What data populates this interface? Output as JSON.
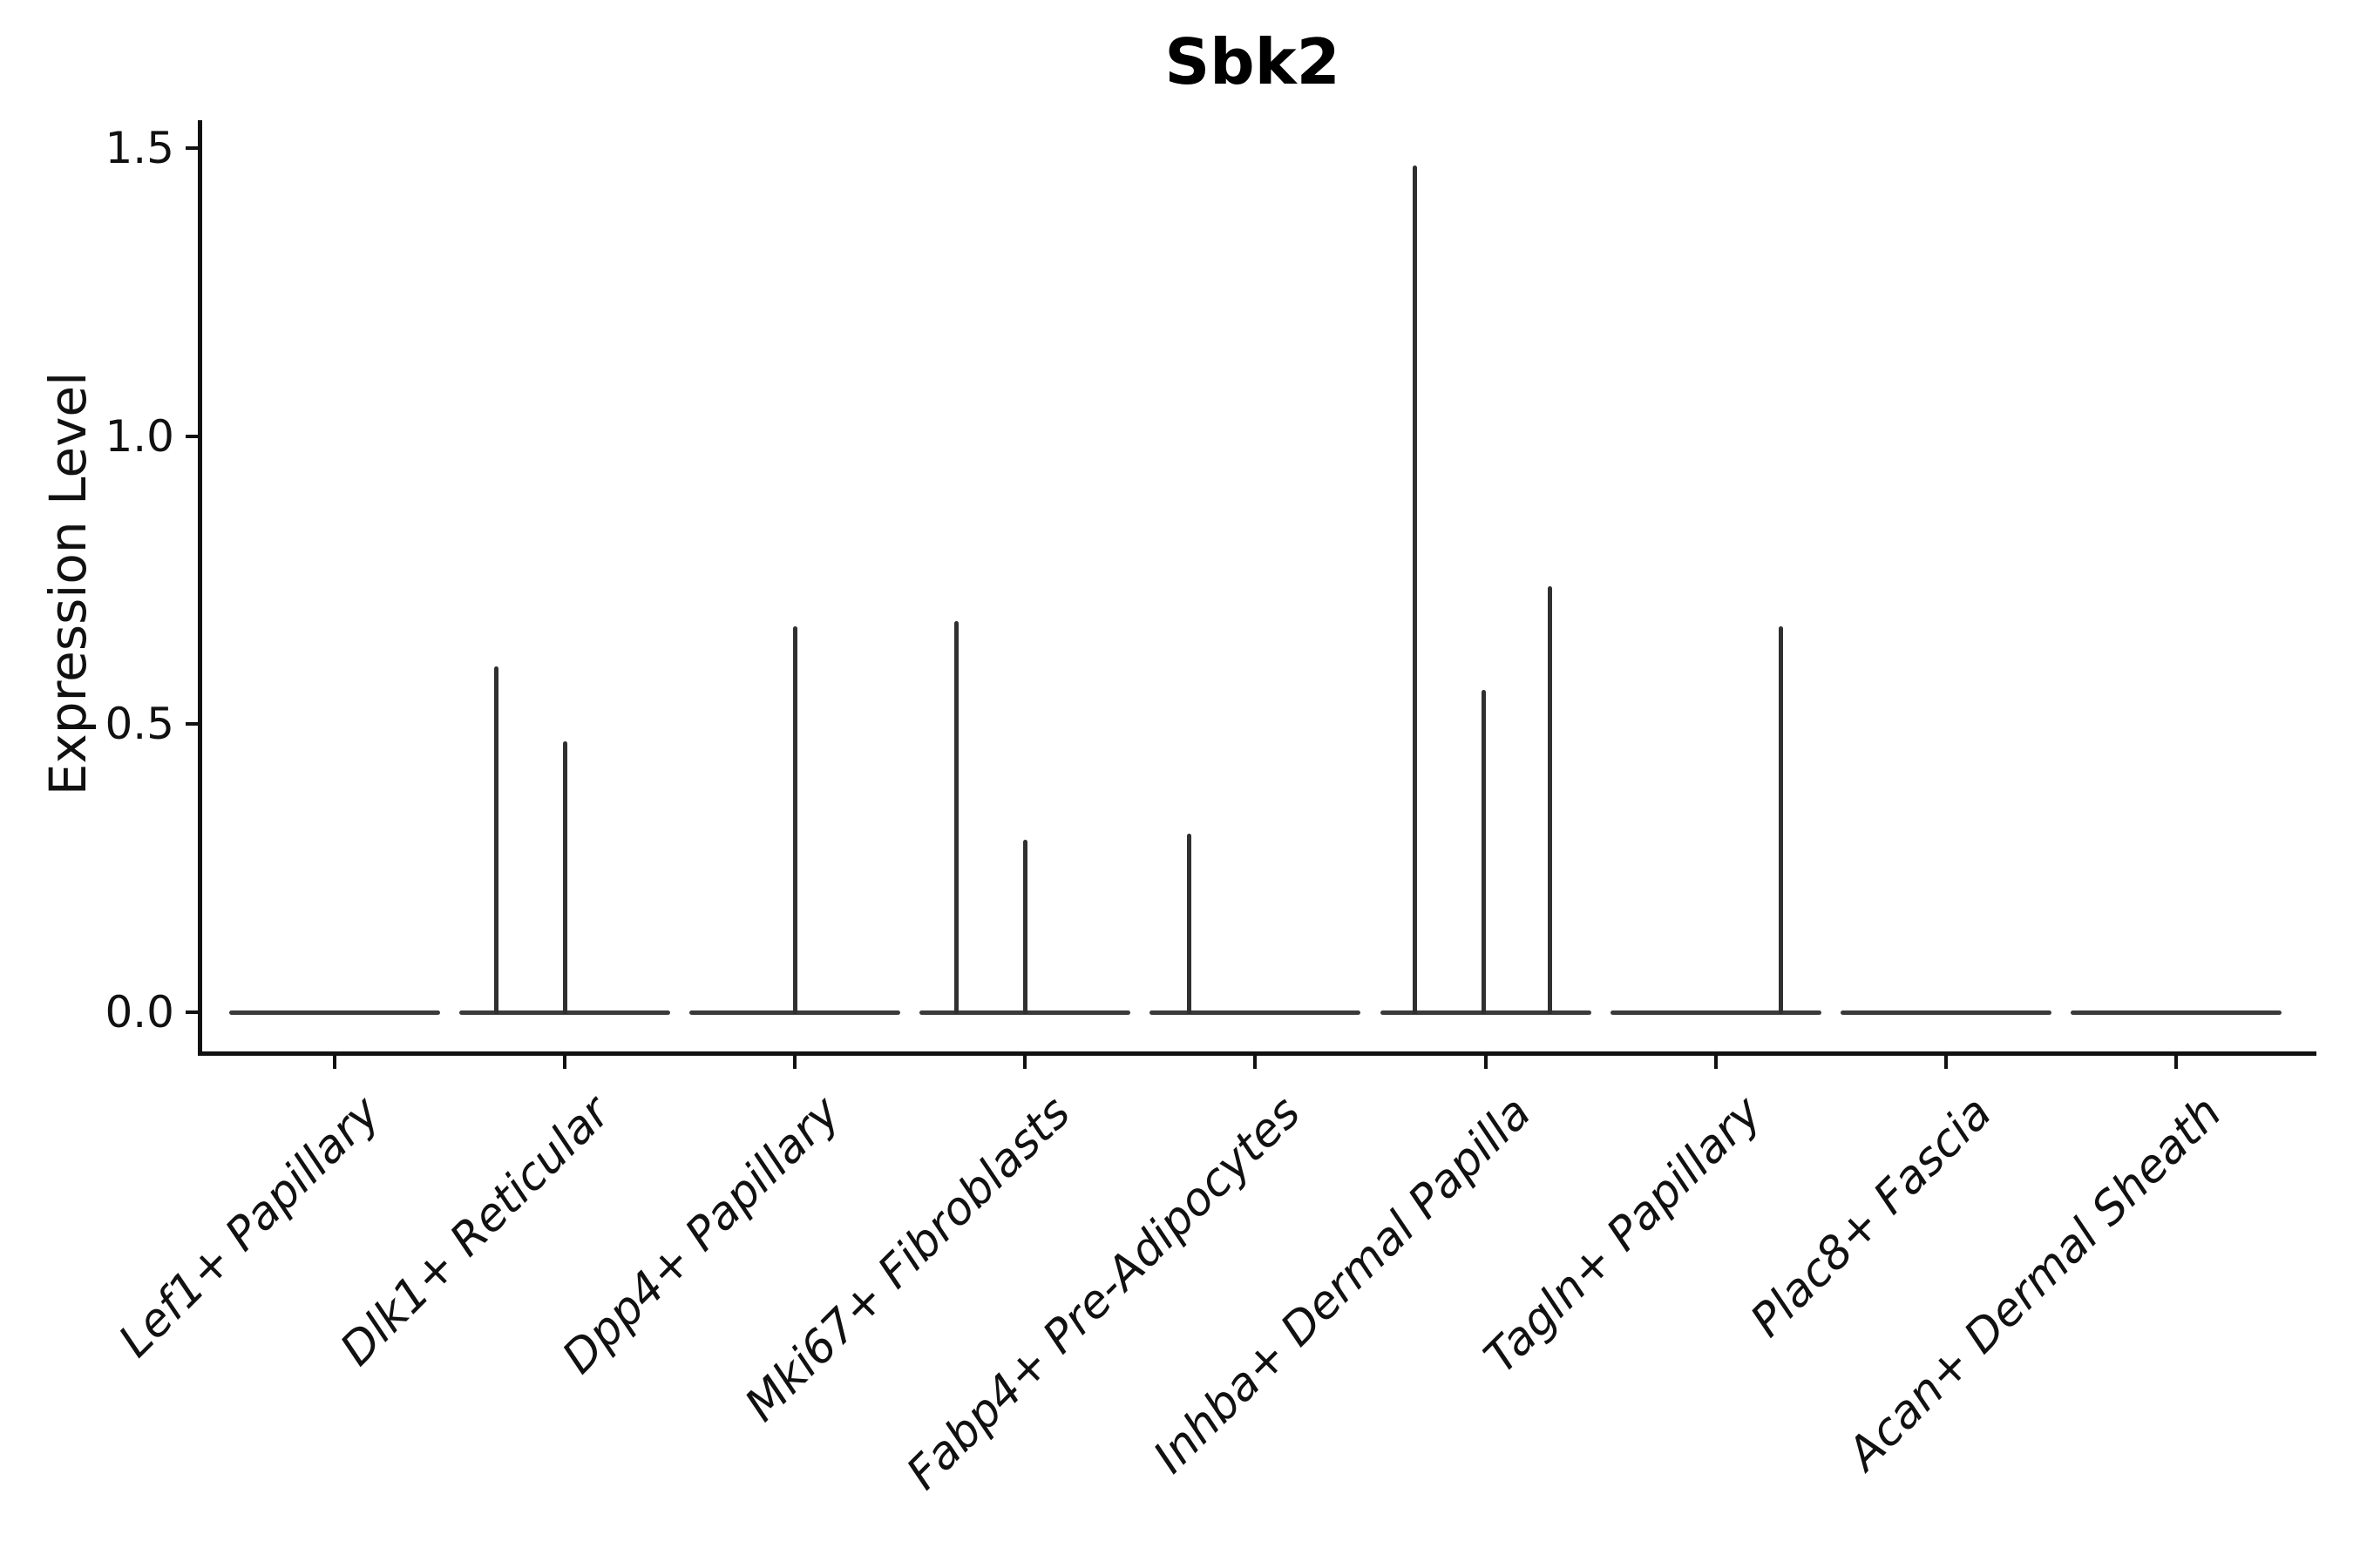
{
  "title": "Sbk2",
  "y_axis": {
    "label": "Expression Level",
    "tick_labels": [
      "0.0",
      "0.5",
      "1.0",
      "1.5"
    ]
  },
  "chart_data": {
    "type": "violin",
    "title": "Sbk2",
    "xlabel": "",
    "ylabel": "Expression Level",
    "ylim": [
      0,
      1.5
    ],
    "ytick_values": [
      0.0,
      0.5,
      1.0,
      1.5
    ],
    "grid": "off",
    "legend": "none",
    "categories": [
      "Lef1+ Papillary",
      "Dlk1+ Reticular",
      "Dpp4+ Papillary",
      "Mki67+ Fibroblasts",
      "Fabp4+ Pre-Adipocytes",
      "Inhba+ Dermal Papilla",
      "Tagln+ Papillary",
      "Plac8+ Fascia",
      "Acan+ Dermal Sheath"
    ],
    "violins": [
      {
        "category": "Lef1+ Papillary",
        "zero_bar": true,
        "spikes": []
      },
      {
        "category": "Dlk1+ Reticular",
        "zero_bar": true,
        "spikes": [
          {
            "value": 0.6,
            "offset_frac": -0.3
          },
          {
            "value": 0.47,
            "offset_frac": 0.0
          }
        ]
      },
      {
        "category": "Dpp4+ Papillary",
        "zero_bar": true,
        "spikes": [
          {
            "value": 0.67,
            "offset_frac": 0.0
          }
        ]
      },
      {
        "category": "Mki67+ Fibroblasts",
        "zero_bar": true,
        "spikes": [
          {
            "value": 0.68,
            "offset_frac": -0.3
          },
          {
            "value": 0.3,
            "offset_frac": 0.0
          }
        ]
      },
      {
        "category": "Fabp4+ Pre-Adipocytes",
        "zero_bar": true,
        "spikes": [
          {
            "value": 0.31,
            "offset_frac": -0.29
          }
        ]
      },
      {
        "category": "Inhba+ Dermal Papilla",
        "zero_bar": true,
        "spikes": [
          {
            "value": 1.47,
            "offset_frac": -0.31
          },
          {
            "value": 0.56,
            "offset_frac": -0.01
          },
          {
            "value": 0.74,
            "offset_frac": 0.28
          }
        ]
      },
      {
        "category": "Tagln+ Papillary",
        "zero_bar": true,
        "spikes": [
          {
            "value": 0.67,
            "offset_frac": 0.28
          }
        ]
      },
      {
        "category": "Plac8+ Fascia",
        "zero_bar": true,
        "spikes": []
      },
      {
        "category": "Acan+ Dermal Sheath",
        "zero_bar": true,
        "spikes": []
      }
    ],
    "colors": {
      "violin_bar": "#3a3a3a",
      "spike": "#303030",
      "axis": "#111111",
      "text": "#111111"
    }
  }
}
